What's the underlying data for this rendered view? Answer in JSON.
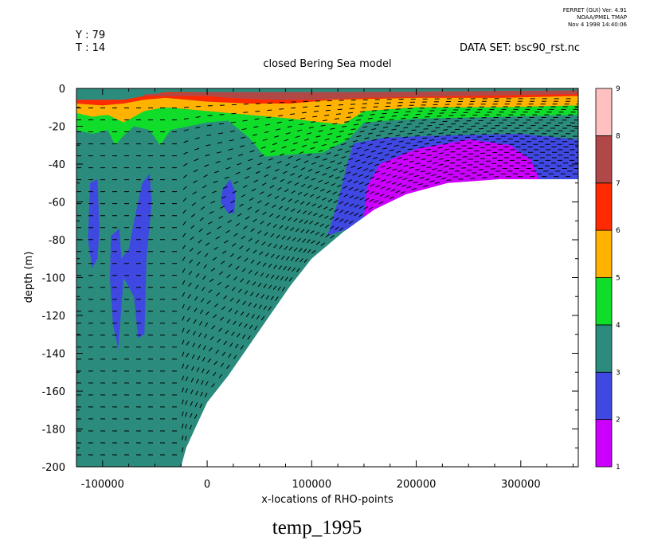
{
  "header": {
    "ferret_line1": "FERRET (GUI) Ver. 4.91",
    "ferret_line2": "NOAA/PMEL TMAP",
    "ferret_line3": "Nov  4 1998 14:40:06",
    "y_label": "Y : 79",
    "t_label": "T : 14",
    "dataset": "DATA SET: bsc90_rst.nc",
    "title": "closed Bering Sea model"
  },
  "footer": {
    "variable": "temp_1995"
  },
  "colors": {
    "c1_2": "#cc00ff",
    "c2_3": "#3f48e0",
    "c3_4": "#2b8c7e",
    "c4_5": "#10dd2a",
    "c5_6": "#ffb300",
    "c6_7": "#ff2a00",
    "c7_8": "#b04848",
    "c8_9": "#ffc0c0"
  },
  "chart_data": {
    "type": "contour",
    "title": "closed Bering Sea model",
    "xlabel": "x-locations of RHO-points",
    "ylabel": "depth (m)",
    "xlim": [
      -125000,
      355000
    ],
    "ylim": [
      -200,
      0
    ],
    "xticks": [
      -100000,
      0,
      100000,
      200000,
      300000
    ],
    "xtick_labels": [
      "-100000",
      "0",
      "100000",
      "200000",
      "300000"
    ],
    "yticks": [
      0,
      -20,
      -40,
      -60,
      -80,
      -100,
      -120,
      -140,
      -160,
      -180,
      -200
    ],
    "ytick_labels": [
      "0",
      "-20",
      "-40",
      "-60",
      "-80",
      "-100",
      "-120",
      "-140",
      "-160",
      "-180",
      "-200"
    ],
    "colorbar": {
      "levels": [
        1,
        2,
        3,
        4,
        5,
        6,
        7,
        8,
        9
      ],
      "labels": [
        "1",
        "2",
        "3",
        "4",
        "5",
        "6",
        "7",
        "8",
        "9"
      ]
    },
    "bottom_profile": [
      [
        -125000,
        -200
      ],
      [
        -25000,
        -200
      ],
      [
        -20000,
        -190
      ],
      [
        -10000,
        -178
      ],
      [
        0,
        -166
      ],
      [
        20000,
        -152
      ],
      [
        40000,
        -136
      ],
      [
        60000,
        -120
      ],
      [
        80000,
        -104
      ],
      [
        100000,
        -90
      ],
      [
        130000,
        -76
      ],
      [
        160000,
        -64
      ],
      [
        190000,
        -56
      ],
      [
        230000,
        -50
      ],
      [
        280000,
        -48
      ],
      [
        355000,
        -48
      ]
    ],
    "bands": [
      {
        "level_range": "6-7",
        "color": "#ff2a00",
        "top": [
          [
            -125000,
            -6
          ],
          [
            -80000,
            -6
          ],
          [
            -60000,
            -4
          ],
          [
            -40000,
            -2
          ],
          [
            355000,
            -2
          ]
        ],
        "bottom": [
          [
            -125000,
            -8
          ],
          [
            -100000,
            -9
          ],
          [
            -80000,
            -8
          ],
          [
            -60000,
            -6
          ],
          [
            -40000,
            -5
          ],
          [
            0,
            -7
          ],
          [
            40000,
            -8
          ],
          [
            80000,
            -8
          ],
          [
            120000,
            -6
          ],
          [
            200000,
            -5
          ],
          [
            280000,
            -5
          ],
          [
            355000,
            -4
          ]
        ]
      },
      {
        "level_range": "7-8",
        "color": "#b04848",
        "top": [
          [
            -60000,
            -3
          ],
          [
            0,
            -2
          ],
          [
            100000,
            -2
          ],
          [
            355000,
            -1
          ]
        ],
        "bottom": [
          [
            -60000,
            -4
          ],
          [
            0,
            -4
          ],
          [
            20000,
            -5
          ],
          [
            60000,
            -6
          ],
          [
            100000,
            -6
          ],
          [
            150000,
            -5
          ],
          [
            250000,
            -4
          ],
          [
            355000,
            -3
          ]
        ]
      },
      {
        "level_range": "5-6",
        "color": "#ffb300",
        "top": [
          [
            -125000,
            -8
          ],
          [
            -100000,
            -9
          ],
          [
            -80000,
            -8
          ],
          [
            -60000,
            -6
          ],
          [
            -40000,
            -5
          ],
          [
            0,
            -7
          ],
          [
            40000,
            -8
          ],
          [
            80000,
            -8
          ],
          [
            120000,
            -6
          ],
          [
            200000,
            -5
          ],
          [
            280000,
            -5
          ],
          [
            355000,
            -4
          ]
        ],
        "bottom": [
          [
            -125000,
            -13
          ],
          [
            -110000,
            -15
          ],
          [
            -95000,
            -14
          ],
          [
            -80000,
            -18
          ],
          [
            -70000,
            -15
          ],
          [
            -60000,
            -12
          ],
          [
            -40000,
            -10
          ],
          [
            0,
            -12
          ],
          [
            40000,
            -14
          ],
          [
            80000,
            -16
          ],
          [
            110000,
            -18
          ],
          [
            130000,
            -19
          ],
          [
            150000,
            -12
          ],
          [
            200000,
            -10
          ],
          [
            280000,
            -10
          ],
          [
            355000,
            -9
          ]
        ]
      },
      {
        "level_range": "4-5",
        "color": "#10dd2a",
        "top": [
          [
            -125000,
            -13
          ],
          [
            -110000,
            -15
          ],
          [
            -95000,
            -14
          ],
          [
            -80000,
            -18
          ],
          [
            -70000,
            -15
          ],
          [
            -60000,
            -12
          ],
          [
            -40000,
            -10
          ],
          [
            0,
            -12
          ],
          [
            40000,
            -14
          ],
          [
            80000,
            -16
          ],
          [
            110000,
            -18
          ],
          [
            130000,
            -19
          ],
          [
            150000,
            -12
          ],
          [
            200000,
            -10
          ],
          [
            280000,
            -10
          ],
          [
            355000,
            -9
          ]
        ],
        "bottom": [
          [
            -125000,
            -22
          ],
          [
            -110000,
            -24
          ],
          [
            -95000,
            -22
          ],
          [
            -88000,
            -30
          ],
          [
            -80000,
            -25
          ],
          [
            -70000,
            -20
          ],
          [
            -55000,
            -22
          ],
          [
            -45000,
            -30
          ],
          [
            -35000,
            -22
          ],
          [
            0,
            -18
          ],
          [
            20000,
            -17
          ],
          [
            40000,
            -26
          ],
          [
            55000,
            -36
          ],
          [
            80000,
            -35
          ],
          [
            110000,
            -34
          ],
          [
            135000,
            -27
          ],
          [
            150000,
            -18
          ],
          [
            200000,
            -16
          ],
          [
            280000,
            -15
          ],
          [
            355000,
            -14
          ]
        ]
      },
      {
        "level_range": "2-3",
        "color": "#3f48e0",
        "top": [
          [
            115000,
            -78
          ],
          [
            125000,
            -60
          ],
          [
            133000,
            -42
          ],
          [
            140000,
            -29
          ],
          [
            170000,
            -26
          ],
          [
            220000,
            -25
          ],
          [
            300000,
            -24
          ],
          [
            355000,
            -27
          ]
        ],
        "bottom": [
          [
            355000,
            -48
          ],
          [
            130000,
            -75
          ],
          [
            115000,
            -78
          ]
        ]
      },
      {
        "level_range": "1-2",
        "color": "#cc00ff",
        "top": [
          [
            150000,
            -68
          ],
          [
            153000,
            -52
          ],
          [
            165000,
            -40
          ],
          [
            200000,
            -32
          ],
          [
            250000,
            -27
          ],
          [
            290000,
            -30
          ],
          [
            310000,
            -38
          ],
          [
            318000,
            -48
          ]
        ],
        "bottom": [
          [
            318000,
            -48
          ],
          [
            200000,
            -58
          ],
          [
            150000,
            -68
          ]
        ]
      }
    ],
    "blue_patches": [
      [
        [
          -112000,
          -50
        ],
        [
          -105000,
          -48
        ],
        [
          -103000,
          -75
        ],
        [
          -105000,
          -90
        ],
        [
          -110000,
          -95
        ],
        [
          -114000,
          -80
        ]
      ],
      [
        [
          -92000,
          -78
        ],
        [
          -84000,
          -74
        ],
        [
          -82000,
          -90
        ],
        [
          -75000,
          -85
        ],
        [
          -68000,
          -65
        ],
        [
          -62000,
          -50
        ],
        [
          -55000,
          -45
        ],
        [
          -53000,
          -60
        ],
        [
          -58000,
          -90
        ],
        [
          -60000,
          -130
        ],
        [
          -66000,
          -132
        ],
        [
          -70000,
          -110
        ],
        [
          -80000,
          -100
        ],
        [
          -85000,
          -138
        ],
        [
          -90000,
          -125
        ],
        [
          -93000,
          -100
        ]
      ],
      [
        [
          15000,
          -53
        ],
        [
          22000,
          -48
        ],
        [
          27000,
          -55
        ],
        [
          26000,
          -66
        ],
        [
          20000,
          -66
        ],
        [
          13000,
          -60
        ]
      ]
    ],
    "contour_hints": "dashed isolines spaced ~6.5 m, descending toward shallow shelf on right"
  }
}
